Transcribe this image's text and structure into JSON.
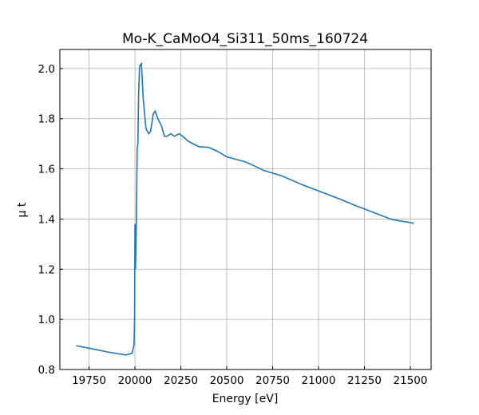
{
  "chart_data": {
    "type": "line",
    "title": "Mo-K_CaMoO4_Si311_50ms_160724",
    "x_label": "Energy [eV]",
    "y_label": "μ t",
    "x": [
      19680,
      19750,
      19850,
      19950,
      19985,
      19995,
      19998,
      20000,
      20003,
      20008,
      20012,
      20016,
      20020,
      20025,
      20035,
      20045,
      20060,
      20075,
      20085,
      20100,
      20110,
      20125,
      20145,
      20160,
      20175,
      20195,
      20215,
      20240,
      20260,
      20290,
      20330,
      20350,
      20400,
      20450,
      20500,
      20550,
      20600,
      20650,
      20700,
      20800,
      20900,
      21000,
      21100,
      21200,
      21300,
      21400,
      21520
    ],
    "series": [
      {
        "name": "μ t",
        "color": "#1f77b4",
        "values": [
          0.895,
          0.885,
          0.87,
          0.858,
          0.865,
          0.9,
          1.0,
          1.38,
          1.2,
          1.4,
          1.68,
          1.7,
          1.9,
          2.01,
          2.02,
          1.88,
          1.76,
          1.74,
          1.75,
          1.82,
          1.83,
          1.8,
          1.77,
          1.73,
          1.73,
          1.74,
          1.73,
          1.74,
          1.73,
          1.71,
          1.695,
          1.688,
          1.686,
          1.67,
          1.648,
          1.638,
          1.628,
          1.612,
          1.594,
          1.572,
          1.54,
          1.512,
          1.484,
          1.454,
          1.426,
          1.398,
          1.383
        ]
      }
    ],
    "xlim": [
      19591,
      21613
    ],
    "ylim": [
      0.8,
      2.076
    ],
    "xticks": [
      19750,
      20000,
      20250,
      20500,
      20750,
      21000,
      21250,
      21500
    ],
    "yticks": [
      {
        "value": 0.8,
        "label": "0.8"
      },
      {
        "value": 1.0,
        "label": "1.0"
      },
      {
        "value": 1.2,
        "label": "1.2"
      },
      {
        "value": 1.4,
        "label": "1.4"
      },
      {
        "value": 1.6,
        "label": "1.6"
      },
      {
        "value": 1.8,
        "label": "1.8"
      },
      {
        "value": 2.0,
        "label": "2.0"
      }
    ],
    "grid": true
  }
}
